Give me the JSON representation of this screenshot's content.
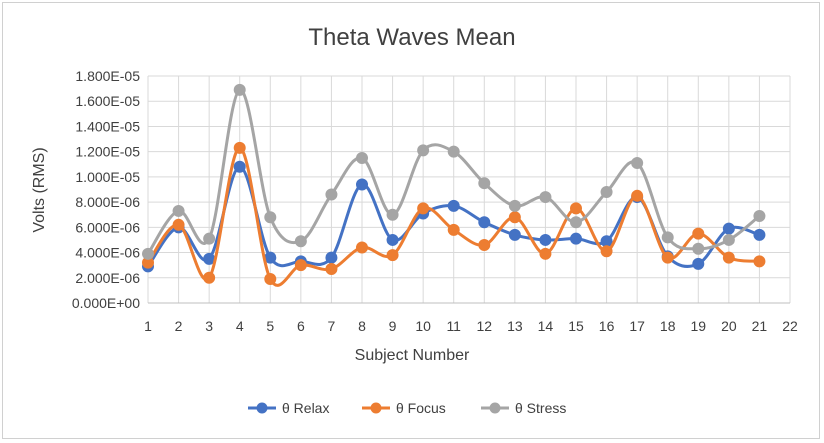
{
  "chart_data": {
    "type": "line",
    "title": "Theta Waves Mean",
    "xlabel": "Subject Number",
    "ylabel": "Volts (RMS)",
    "x": [
      1,
      2,
      3,
      4,
      5,
      6,
      7,
      8,
      9,
      10,
      11,
      12,
      13,
      14,
      15,
      16,
      17,
      18,
      19,
      20,
      21
    ],
    "x_ticks": [
      "1",
      "2",
      "3",
      "4",
      "5",
      "6",
      "7",
      "8",
      "9",
      "10",
      "11",
      "12",
      "13",
      "14",
      "15",
      "16",
      "17",
      "18",
      "19",
      "20",
      "21",
      "22"
    ],
    "xlim": [
      1,
      22
    ],
    "ylim": [
      0,
      1.8e-05
    ],
    "y_ticks": [
      {
        "value": 0.0,
        "label": "0.000E+00"
      },
      {
        "value": 2e-06,
        "label": "2.000E-06"
      },
      {
        "value": 4e-06,
        "label": "4.000E-06"
      },
      {
        "value": 6e-06,
        "label": "6.000E-06"
      },
      {
        "value": 8e-06,
        "label": "8.000E-06"
      },
      {
        "value": 1e-05,
        "label": "1.000E-05"
      },
      {
        "value": 1.2e-05,
        "label": "1.200E-05"
      },
      {
        "value": 1.4e-05,
        "label": "1.400E-05"
      },
      {
        "value": 1.6e-05,
        "label": "1.600E-05"
      },
      {
        "value": 1.8e-05,
        "label": "1.800E-05"
      }
    ],
    "grid": "vertical-and-horizontal",
    "legend_position": "bottom",
    "series": [
      {
        "name": "θ Relax",
        "color": "#4472C4",
        "values": [
          2.9e-06,
          6e-06,
          3.5e-06,
          1.08e-05,
          3.6e-06,
          3.3e-06,
          3.6e-06,
          9.4e-06,
          5e-06,
          7.1e-06,
          7.7e-06,
          6.4e-06,
          5.4e-06,
          5e-06,
          5.1e-06,
          4.9e-06,
          8.4e-06,
          3.7e-06,
          3.1e-06,
          5.9e-06,
          5.4e-06
        ]
      },
      {
        "name": "θ Focus",
        "color": "#ED7D31",
        "values": [
          3.2e-06,
          6.2e-06,
          2e-06,
          1.23e-05,
          1.9e-06,
          3e-06,
          2.7e-06,
          4.4e-06,
          3.8e-06,
          7.5e-06,
          5.8e-06,
          4.6e-06,
          6.8e-06,
          3.9e-06,
          7.5e-06,
          4.1e-06,
          8.5e-06,
          3.6e-06,
          5.5e-06,
          3.6e-06,
          3.3e-06
        ]
      },
      {
        "name": "θ Stress",
        "color": "#A5A5A5",
        "values": [
          3.9e-06,
          7.3e-06,
          5.1e-06,
          1.69e-05,
          6.8e-06,
          4.9e-06,
          8.6e-06,
          1.15e-05,
          7e-06,
          1.21e-05,
          1.2e-05,
          9.5e-06,
          7.7e-06,
          8.4e-06,
          6.4e-06,
          8.8e-06,
          1.11e-05,
          5.2e-06,
          4.3e-06,
          5e-06,
          6.9e-06
        ]
      }
    ]
  }
}
